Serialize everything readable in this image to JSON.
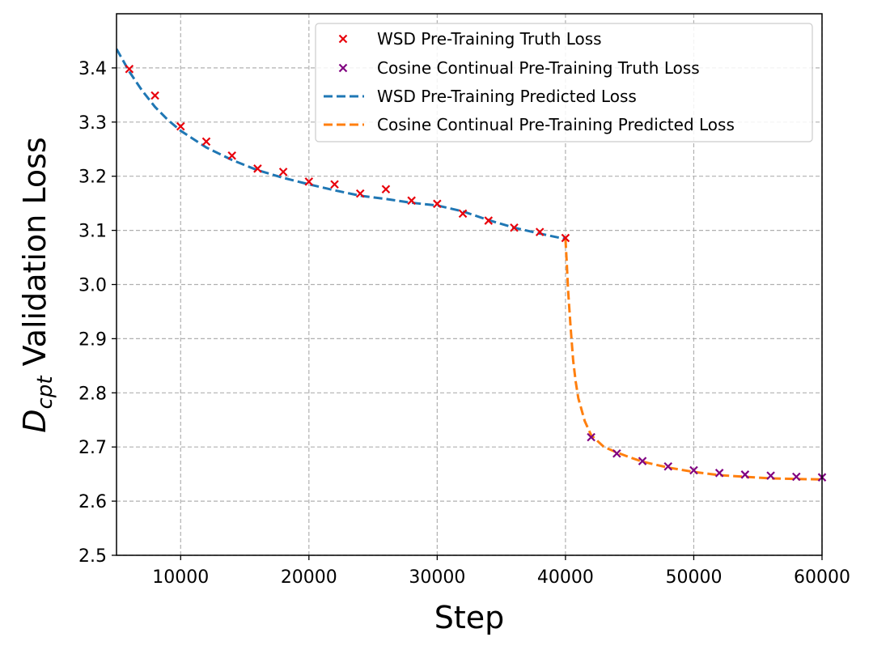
{
  "chart_data": {
    "type": "line",
    "xlabel": "Step",
    "ylabel": {
      "symbol": "D",
      "subscript": "cpt",
      "text": " Validation Loss"
    },
    "xlim": [
      5000,
      60000
    ],
    "ylim": [
      2.5,
      3.5
    ],
    "xticks": [
      10000,
      20000,
      30000,
      40000,
      50000,
      60000
    ],
    "yticks": [
      2.5,
      2.6,
      2.7,
      2.8,
      2.9,
      3.0,
      3.1,
      3.2,
      3.3,
      3.4
    ],
    "ytick_labels": [
      "2.5",
      "2.6",
      "2.7",
      "2.8",
      "2.9",
      "3.0",
      "3.1",
      "3.2",
      "3.3",
      "3.4"
    ],
    "grid": true,
    "legend_position": "top-right",
    "series": [
      {
        "name": "WSD Pre-Training Truth Loss",
        "kind": "marker",
        "color": "#e8000b",
        "x": [
          6000,
          8000,
          10000,
          12000,
          14000,
          16000,
          18000,
          20000,
          22000,
          24000,
          26000,
          28000,
          30000,
          32000,
          34000,
          36000,
          38000,
          40000
        ],
        "y": [
          3.398,
          3.349,
          3.292,
          3.264,
          3.238,
          3.214,
          3.208,
          3.19,
          3.185,
          3.168,
          3.176,
          3.155,
          3.149,
          3.131,
          3.118,
          3.105,
          3.097,
          3.086
        ]
      },
      {
        "name": "Cosine Continual Pre-Training Truth Loss",
        "kind": "marker",
        "color": "#800080",
        "x": [
          42000,
          44000,
          46000,
          48000,
          50000,
          52000,
          54000,
          56000,
          58000,
          60000
        ],
        "y": [
          2.718,
          2.688,
          2.674,
          2.664,
          2.657,
          2.652,
          2.649,
          2.647,
          2.645,
          2.644
        ]
      },
      {
        "name": "WSD Pre-Training Predicted Loss",
        "kind": "dashed-line",
        "color": "#1f77b4",
        "x": [
          5000,
          6000,
          7000,
          8000,
          9000,
          10000,
          12000,
          14000,
          16000,
          18000,
          20000,
          22000,
          24000,
          26000,
          28000,
          30000,
          32000,
          34000,
          36000,
          38000,
          40000
        ],
        "y": [
          3.435,
          3.393,
          3.358,
          3.328,
          3.304,
          3.284,
          3.253,
          3.23,
          3.211,
          3.197,
          3.185,
          3.174,
          3.164,
          3.158,
          3.151,
          3.146,
          3.135,
          3.119,
          3.105,
          3.094,
          3.084
        ]
      },
      {
        "name": "Cosine Continual Pre-Training Predicted Loss",
        "kind": "dashed-line",
        "color": "#ff7f0e",
        "x": [
          40000,
          40100,
          40200,
          40400,
          40600,
          40800,
          41000,
          41500,
          42000,
          43000,
          44000,
          45000,
          46000,
          48000,
          50000,
          52000,
          54000,
          56000,
          58000,
          60000
        ],
        "y": [
          3.084,
          3.04,
          2.99,
          2.92,
          2.86,
          2.82,
          2.79,
          2.748,
          2.722,
          2.7,
          2.69,
          2.681,
          2.673,
          2.662,
          2.654,
          2.648,
          2.645,
          2.642,
          2.641,
          2.64
        ]
      }
    ]
  }
}
